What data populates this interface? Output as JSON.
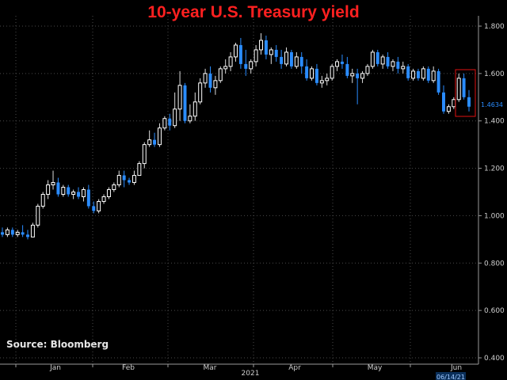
{
  "chart_data": {
    "type": "candlestick",
    "title": "10-year U.S. Treasury yield",
    "source": "Source:  Bloomberg",
    "year_label": "2021",
    "date_badge": "06/14/21",
    "last_value_label": "1.4634",
    "highlight": "red box around most recent candles (early-mid June)",
    "colors": {
      "up": "#ffffff",
      "down": "#2a8cff",
      "title": "#ff2020",
      "highlight": "#e01010"
    },
    "ylim": [
      0.4,
      1.8
    ],
    "yticks": [
      "1.800",
      "1.600",
      "1.400",
      "1.200",
      "1.000",
      "0.800",
      "0.600",
      "0.400"
    ],
    "xticks": [
      {
        "label": "Jan",
        "date": "2021-01-15"
      },
      {
        "label": "Feb",
        "date": "2021-02-15"
      },
      {
        "label": "Mar",
        "date": "2021-03-15"
      },
      {
        "label": "Apr",
        "date": "2021-04-15"
      },
      {
        "label": "May",
        "date": "2021-05-15"
      },
      {
        "label": "Jun",
        "date": "2021-06-15"
      }
    ],
    "xlim": [
      "2020-12-28",
      "2021-06-18"
    ],
    "grid": true,
    "series": [
      {
        "name": "OHLC",
        "values": [
          [
            0.93,
            0.95,
            0.91,
            0.92
          ],
          [
            0.92,
            0.95,
            0.91,
            0.94
          ],
          [
            0.94,
            0.95,
            0.91,
            0.92
          ],
          [
            0.92,
            0.94,
            0.91,
            0.93
          ],
          [
            0.93,
            0.96,
            0.91,
            0.92
          ],
          [
            0.92,
            0.94,
            0.9,
            0.91
          ],
          [
            0.91,
            0.97,
            0.91,
            0.96
          ],
          [
            0.96,
            1.05,
            0.95,
            1.04
          ],
          [
            1.04,
            1.1,
            1.03,
            1.09
          ],
          [
            1.09,
            1.15,
            1.07,
            1.13
          ],
          [
            1.13,
            1.19,
            1.11,
            1.14
          ],
          [
            1.14,
            1.16,
            1.08,
            1.09
          ],
          [
            1.09,
            1.13,
            1.08,
            1.12
          ],
          [
            1.12,
            1.13,
            1.08,
            1.09
          ],
          [
            1.09,
            1.11,
            1.07,
            1.1
          ],
          [
            1.1,
            1.12,
            1.07,
            1.08
          ],
          [
            1.08,
            1.12,
            1.06,
            1.11
          ],
          [
            1.11,
            1.13,
            1.03,
            1.04
          ],
          [
            1.04,
            1.06,
            1.01,
            1.02
          ],
          [
            1.02,
            1.07,
            1.01,
            1.06
          ],
          [
            1.06,
            1.09,
            1.05,
            1.08
          ],
          [
            1.08,
            1.12,
            1.07,
            1.11
          ],
          [
            1.11,
            1.14,
            1.1,
            1.13
          ],
          [
            1.13,
            1.19,
            1.12,
            1.17
          ],
          [
            1.17,
            1.19,
            1.12,
            1.15
          ],
          [
            1.15,
            1.16,
            1.13,
            1.14
          ],
          [
            1.14,
            1.19,
            1.13,
            1.17
          ],
          [
            1.17,
            1.23,
            1.17,
            1.22
          ],
          [
            1.22,
            1.31,
            1.2,
            1.3
          ],
          [
            1.3,
            1.36,
            1.29,
            1.32
          ],
          [
            1.32,
            1.35,
            1.29,
            1.3
          ],
          [
            1.3,
            1.39,
            1.29,
            1.37
          ],
          [
            1.37,
            1.42,
            1.36,
            1.41
          ],
          [
            1.41,
            1.43,
            1.36,
            1.38
          ],
          [
            1.38,
            1.52,
            1.37,
            1.45
          ],
          [
            1.45,
            1.61,
            1.4,
            1.55
          ],
          [
            1.55,
            1.56,
            1.39,
            1.4
          ],
          [
            1.4,
            1.47,
            1.39,
            1.42
          ],
          [
            1.42,
            1.52,
            1.4,
            1.48
          ],
          [
            1.48,
            1.58,
            1.47,
            1.56
          ],
          [
            1.56,
            1.62,
            1.54,
            1.6
          ],
          [
            1.6,
            1.63,
            1.52,
            1.54
          ],
          [
            1.54,
            1.59,
            1.51,
            1.57
          ],
          [
            1.57,
            1.63,
            1.56,
            1.62
          ],
          [
            1.62,
            1.66,
            1.6,
            1.63
          ],
          [
            1.63,
            1.69,
            1.61,
            1.67
          ],
          [
            1.67,
            1.73,
            1.65,
            1.72
          ],
          [
            1.72,
            1.75,
            1.62,
            1.64
          ],
          [
            1.64,
            1.7,
            1.59,
            1.62
          ],
          [
            1.62,
            1.66,
            1.6,
            1.65
          ],
          [
            1.65,
            1.72,
            1.63,
            1.7
          ],
          [
            1.7,
            1.77,
            1.68,
            1.74
          ],
          [
            1.74,
            1.76,
            1.66,
            1.68
          ],
          [
            1.68,
            1.71,
            1.64,
            1.7
          ],
          [
            1.7,
            1.72,
            1.65,
            1.67
          ],
          [
            1.67,
            1.7,
            1.62,
            1.64
          ],
          [
            1.64,
            1.71,
            1.63,
            1.69
          ],
          [
            1.69,
            1.7,
            1.62,
            1.63
          ],
          [
            1.63,
            1.69,
            1.62,
            1.67
          ],
          [
            1.67,
            1.69,
            1.6,
            1.63
          ],
          [
            1.63,
            1.66,
            1.57,
            1.58
          ],
          [
            1.58,
            1.63,
            1.57,
            1.62
          ],
          [
            1.62,
            1.64,
            1.55,
            1.56
          ],
          [
            1.56,
            1.59,
            1.54,
            1.57
          ],
          [
            1.57,
            1.6,
            1.55,
            1.58
          ],
          [
            1.58,
            1.64,
            1.57,
            1.63
          ],
          [
            1.63,
            1.66,
            1.61,
            1.65
          ],
          [
            1.65,
            1.68,
            1.62,
            1.64
          ],
          [
            1.64,
            1.67,
            1.58,
            1.59
          ],
          [
            1.59,
            1.62,
            1.56,
            1.6
          ],
          [
            1.6,
            1.62,
            1.47,
            1.58
          ],
          [
            1.58,
            1.61,
            1.56,
            1.6
          ],
          [
            1.6,
            1.64,
            1.59,
            1.63
          ],
          [
            1.63,
            1.7,
            1.62,
            1.69
          ],
          [
            1.69,
            1.7,
            1.63,
            1.64
          ],
          [
            1.64,
            1.68,
            1.62,
            1.67
          ],
          [
            1.67,
            1.69,
            1.62,
            1.63
          ],
          [
            1.63,
            1.66,
            1.61,
            1.65
          ],
          [
            1.65,
            1.67,
            1.6,
            1.62
          ],
          [
            1.62,
            1.65,
            1.6,
            1.63
          ],
          [
            1.63,
            1.64,
            1.57,
            1.58
          ],
          [
            1.58,
            1.62,
            1.57,
            1.61
          ],
          [
            1.61,
            1.62,
            1.57,
            1.58
          ],
          [
            1.58,
            1.63,
            1.57,
            1.62
          ],
          [
            1.62,
            1.63,
            1.56,
            1.57
          ],
          [
            1.57,
            1.63,
            1.56,
            1.61
          ],
          [
            1.61,
            1.62,
            1.51,
            1.52
          ],
          [
            1.52,
            1.55,
            1.43,
            1.44
          ],
          [
            1.44,
            1.47,
            1.43,
            1.46
          ],
          [
            1.46,
            1.5,
            1.45,
            1.49
          ],
          [
            1.49,
            1.6,
            1.48,
            1.58
          ],
          [
            1.58,
            1.6,
            1.49,
            1.5
          ],
          [
            1.5,
            1.53,
            1.44,
            1.46
          ]
        ]
      }
    ]
  }
}
